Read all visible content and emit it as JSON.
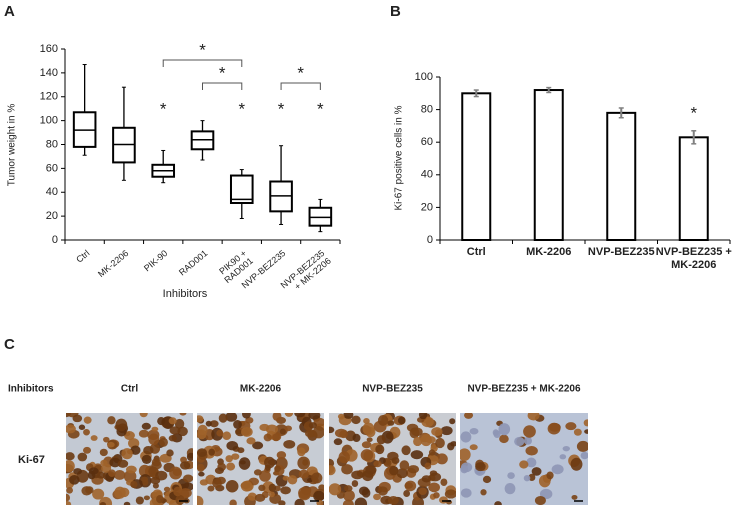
{
  "chart_data": [
    {
      "type": "box",
      "panel_label": "A",
      "ylabel": "Tumor weight in %",
      "xlabel": "Inhibitors",
      "categories": [
        "Ctrl",
        "MK-2206",
        "PIK-90",
        "RAD001",
        "PIK90 + RAD001",
        "NVP-BEZ235",
        "NVP-BEZ235 + MK-2206"
      ],
      "boxes": [
        {
          "min": 71,
          "q1": 78,
          "median": 92,
          "q3": 107,
          "max": 147
        },
        {
          "min": 50,
          "q1": 65,
          "median": 80,
          "q3": 94,
          "max": 128
        },
        {
          "min": 48,
          "q1": 53,
          "median": 58,
          "q3": 63,
          "max": 75
        },
        {
          "min": 67,
          "q1": 76,
          "median": 84,
          "q3": 91,
          "max": 100
        },
        {
          "min": 18,
          "q1": 31,
          "median": 34,
          "q3": 54,
          "max": 59
        },
        {
          "min": 13,
          "q1": 24,
          "median": 37,
          "q3": 49,
          "max": 79
        },
        {
          "min": 7,
          "q1": 12,
          "median": 19,
          "q3": 27,
          "max": 34
        }
      ],
      "color": "#000000",
      "ylim": [
        0,
        160
      ],
      "yticks": [
        0,
        20,
        40,
        60,
        80,
        100,
        120,
        140,
        160
      ],
      "annotations": [
        {
          "text": "*",
          "category": "PIK-90"
        },
        {
          "text": "*",
          "category": "PIK90 + RAD001"
        },
        {
          "text": "*",
          "category": "NVP-BEZ235"
        },
        {
          "text": "*",
          "category": "NVP-BEZ235 + MK-2206"
        }
      ],
      "brackets": [
        {
          "text": "*",
          "from": "PIK-90",
          "to": "PIK90 + RAD001"
        },
        {
          "text": "*",
          "from": "RAD001",
          "to": "PIK90 + RAD001"
        },
        {
          "text": "*",
          "from": "NVP-BEZ235",
          "to": "NVP-BEZ235 + MK-2206"
        }
      ]
    },
    {
      "type": "bar",
      "panel_label": "B",
      "ylabel": "Ki-67 positive cells in %",
      "categories": [
        "Ctrl",
        "MK-2206",
        "NVP-BEZ235",
        "NVP-BEZ235 + MK-2206"
      ],
      "values": [
        90,
        92,
        78,
        63
      ],
      "errors": [
        2,
        1.5,
        3,
        4
      ],
      "color": "#ffffff",
      "error_color": "#808080",
      "ylim": [
        0,
        100
      ],
      "yticks": [
        0,
        20,
        40,
        60,
        80,
        100
      ],
      "annotations": [
        {
          "text": "*",
          "category": "NVP-BEZ235 + MK-2206"
        }
      ]
    }
  ],
  "panel_c": {
    "label": "C",
    "row_header": "Inhibitors",
    "columns": [
      "Ctrl",
      "MK-2206",
      "NVP-BEZ235",
      "NVP-BEZ235 + MK-2206"
    ],
    "row_label": "Ki-67"
  }
}
